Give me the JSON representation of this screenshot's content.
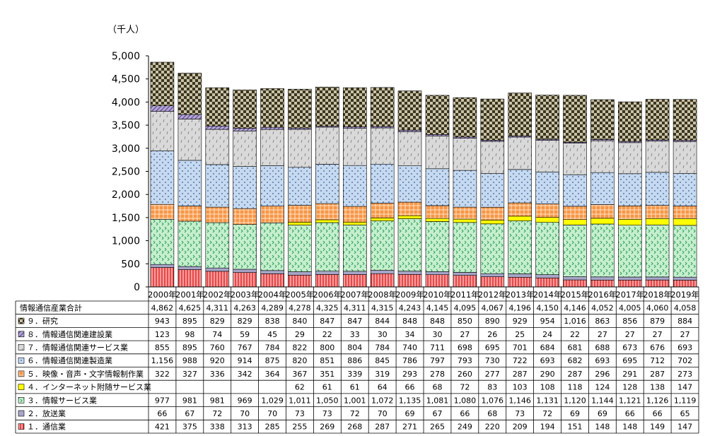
{
  "chart_data": {
    "type": "bar",
    "stacked": true,
    "unit_label": "（千人）",
    "ylim": [
      0,
      5000
    ],
    "yticks": [
      "0",
      "500",
      "1,000",
      "1,500",
      "2,000",
      "2,500",
      "3,000",
      "3,500",
      "4,000",
      "4,500",
      "5,000"
    ],
    "grid": false,
    "legend": "table-below",
    "categories": [
      "2000年",
      "2001年",
      "2002年",
      "2003年",
      "2004年",
      "2005年",
      "2006年",
      "2007年",
      "2008年",
      "2009年",
      "2010年",
      "2011年",
      "2012年",
      "2013年",
      "2014年",
      "2015年",
      "2016年",
      "2017年",
      "2018年",
      "2019年"
    ],
    "total": {
      "name": "情報通信産業合計",
      "values": [
        4862,
        4625,
        4311,
        4263,
        4289,
        4278,
        4325,
        4311,
        4315,
        4243,
        4145,
        4095,
        4067,
        4196,
        4150,
        4146,
        4052,
        4005,
        4060,
        4058
      ],
      "labels": [
        "4,862",
        "4,625",
        "4,311",
        "4,263",
        "4,289",
        "4,278",
        "4,325",
        "4,311",
        "4,315",
        "4,243",
        "4,145",
        "4,095",
        "4,067",
        "4,196",
        "4,150",
        "4,146",
        "4,052",
        "4,005",
        "4,060",
        "4,058"
      ]
    },
    "series": [
      {
        "name": "９．研究",
        "color": "#3c3522",
        "pattern": "check",
        "values": [
          943,
          895,
          829,
          829,
          838,
          840,
          847,
          847,
          844,
          848,
          848,
          850,
          890,
          929,
          954,
          1016,
          863,
          856,
          879,
          884
        ],
        "labels": [
          "943",
          "895",
          "829",
          "829",
          "838",
          "840",
          "847",
          "847",
          "844",
          "848",
          "848",
          "850",
          "890",
          "929",
          "954",
          "1,016",
          "863",
          "856",
          "879",
          "884"
        ]
      },
      {
        "name": "８．情報通信関連建設業",
        "color": "#b4a7d6",
        "pattern": "diag",
        "values": [
          123,
          98,
          74,
          59,
          45,
          29,
          22,
          33,
          30,
          34,
          30,
          27,
          26,
          25,
          24,
          22,
          27,
          27,
          27,
          27
        ],
        "labels": [
          "123",
          "98",
          "74",
          "59",
          "45",
          "29",
          "22",
          "33",
          "30",
          "34",
          "30",
          "27",
          "26",
          "25",
          "24",
          "22",
          "27",
          "27",
          "27",
          "27"
        ]
      },
      {
        "name": "７．情報通信関連サービス業",
        "color": "#d9d9d9",
        "pattern": "dash",
        "values": [
          855,
          895,
          760,
          767,
          784,
          822,
          800,
          804,
          784,
          740,
          711,
          698,
          695,
          701,
          684,
          681,
          688,
          673,
          676,
          693
        ],
        "labels": [
          "855",
          "895",
          "760",
          "767",
          "784",
          "822",
          "800",
          "804",
          "784",
          "740",
          "711",
          "698",
          "695",
          "701",
          "684",
          "681",
          "688",
          "673",
          "676",
          "693"
        ]
      },
      {
        "name": "６．情報通信関連製造業",
        "color": "#c5d9f1",
        "pattern": "dots",
        "values": [
          1156,
          988,
          920,
          914,
          875,
          820,
          851,
          886,
          845,
          786,
          797,
          793,
          730,
          722,
          693,
          682,
          693,
          695,
          712,
          702
        ],
        "labels": [
          "1,156",
          "988",
          "920",
          "914",
          "875",
          "820",
          "851",
          "886",
          "845",
          "786",
          "797",
          "793",
          "730",
          "722",
          "693",
          "682",
          "693",
          "695",
          "712",
          "702"
        ]
      },
      {
        "name": "５．映像・音声・文字情報制作業",
        "color": "#f79646",
        "pattern": "grid",
        "values": [
          322,
          327,
          336,
          342,
          364,
          367,
          351,
          339,
          319,
          293,
          278,
          260,
          277,
          287,
          290,
          287,
          296,
          291,
          287,
          273
        ],
        "labels": [
          "322",
          "327",
          "336",
          "342",
          "364",
          "367",
          "351",
          "339",
          "319",
          "293",
          "278",
          "260",
          "277",
          "287",
          "290",
          "287",
          "296",
          "291",
          "287",
          "273"
        ]
      },
      {
        "name": "４．インターネット附随サービス業",
        "color": "#ffff00",
        "pattern": "solid",
        "values": [
          0,
          0,
          0,
          0,
          0,
          62,
          61,
          61,
          64,
          66,
          68,
          72,
          83,
          103,
          108,
          118,
          124,
          128,
          138,
          147
        ],
        "labels": [
          "",
          "",
          "",
          "",
          "",
          "62",
          "61",
          "61",
          "64",
          "66",
          "68",
          "72",
          "83",
          "103",
          "108",
          "118",
          "124",
          "128",
          "138",
          "147"
        ]
      },
      {
        "name": "３．情報サービス業",
        "color": "#c6efce",
        "pattern": "wave",
        "values": [
          977,
          981,
          981,
          969,
          1029,
          1011,
          1050,
          1001,
          1072,
          1135,
          1081,
          1080,
          1076,
          1146,
          1131,
          1120,
          1144,
          1121,
          1126,
          1119
        ],
        "labels": [
          "977",
          "981",
          "981",
          "969",
          "1,029",
          "1,011",
          "1,050",
          "1,001",
          "1,072",
          "1,135",
          "1,081",
          "1,080",
          "1,076",
          "1,146",
          "1,131",
          "1,120",
          "1,144",
          "1,121",
          "1,126",
          "1,119"
        ]
      },
      {
        "name": "２．放送業",
        "color": "#a6a6c8",
        "pattern": "solid",
        "values": [
          66,
          67,
          72,
          70,
          70,
          73,
          73,
          72,
          70,
          69,
          67,
          66,
          68,
          73,
          72,
          69,
          69,
          66,
          66,
          65
        ],
        "labels": [
          "66",
          "67",
          "72",
          "70",
          "70",
          "73",
          "73",
          "72",
          "70",
          "69",
          "67",
          "66",
          "68",
          "73",
          "72",
          "69",
          "69",
          "66",
          "66",
          "65"
        ]
      },
      {
        "name": "１．通信業",
        "color": "#ff9999",
        "pattern": "vlines",
        "values": [
          421,
          375,
          338,
          313,
          285,
          255,
          269,
          268,
          287,
          271,
          265,
          249,
          220,
          209,
          194,
          151,
          148,
          148,
          149,
          147
        ],
        "labels": [
          "421",
          "375",
          "338",
          "313",
          "285",
          "255",
          "269",
          "268",
          "287",
          "271",
          "265",
          "249",
          "220",
          "209",
          "194",
          "151",
          "148",
          "148",
          "149",
          "147"
        ]
      }
    ]
  }
}
